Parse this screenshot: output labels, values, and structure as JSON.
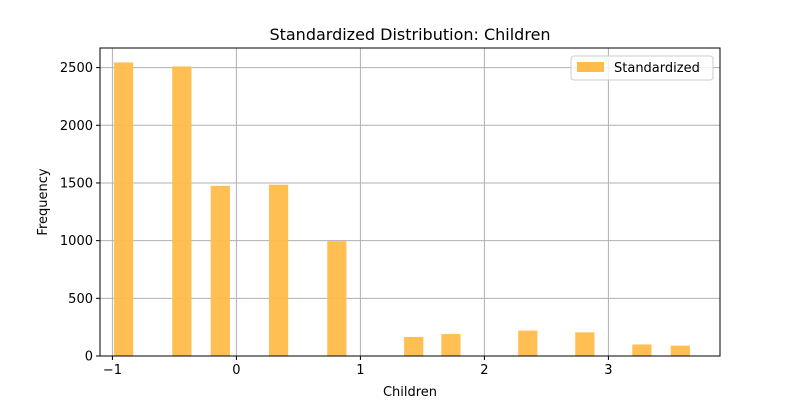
{
  "chart_data": {
    "type": "bar",
    "title": "Standardized Distribution: Children",
    "xlabel": "Children",
    "ylabel": "Frequency",
    "xlim": [
      -1.1,
      3.9
    ],
    "ylim": [
      0,
      2670
    ],
    "grid": true,
    "legend_position": "top-right",
    "x_ticks": [
      -1,
      0,
      1,
      2,
      3
    ],
    "x_tick_labels": [
      "−1",
      "0",
      "1",
      "2",
      "3"
    ],
    "y_ticks": [
      0,
      500,
      1000,
      1500,
      2000,
      2500
    ],
    "y_tick_labels": [
      "0",
      "500",
      "1000",
      "1500",
      "2000",
      "2500"
    ],
    "bin_width": 0.155,
    "series": [
      {
        "name": "Standardized",
        "color": "#FFBC4A",
        "x": [
          -0.91,
          -0.44,
          -0.13,
          0.34,
          0.81,
          1.43,
          1.73,
          2.35,
          2.81,
          3.27,
          3.58
        ],
        "values": [
          2545,
          2510,
          1475,
          1485,
          995,
          165,
          190,
          220,
          205,
          100,
          90
        ]
      }
    ]
  }
}
